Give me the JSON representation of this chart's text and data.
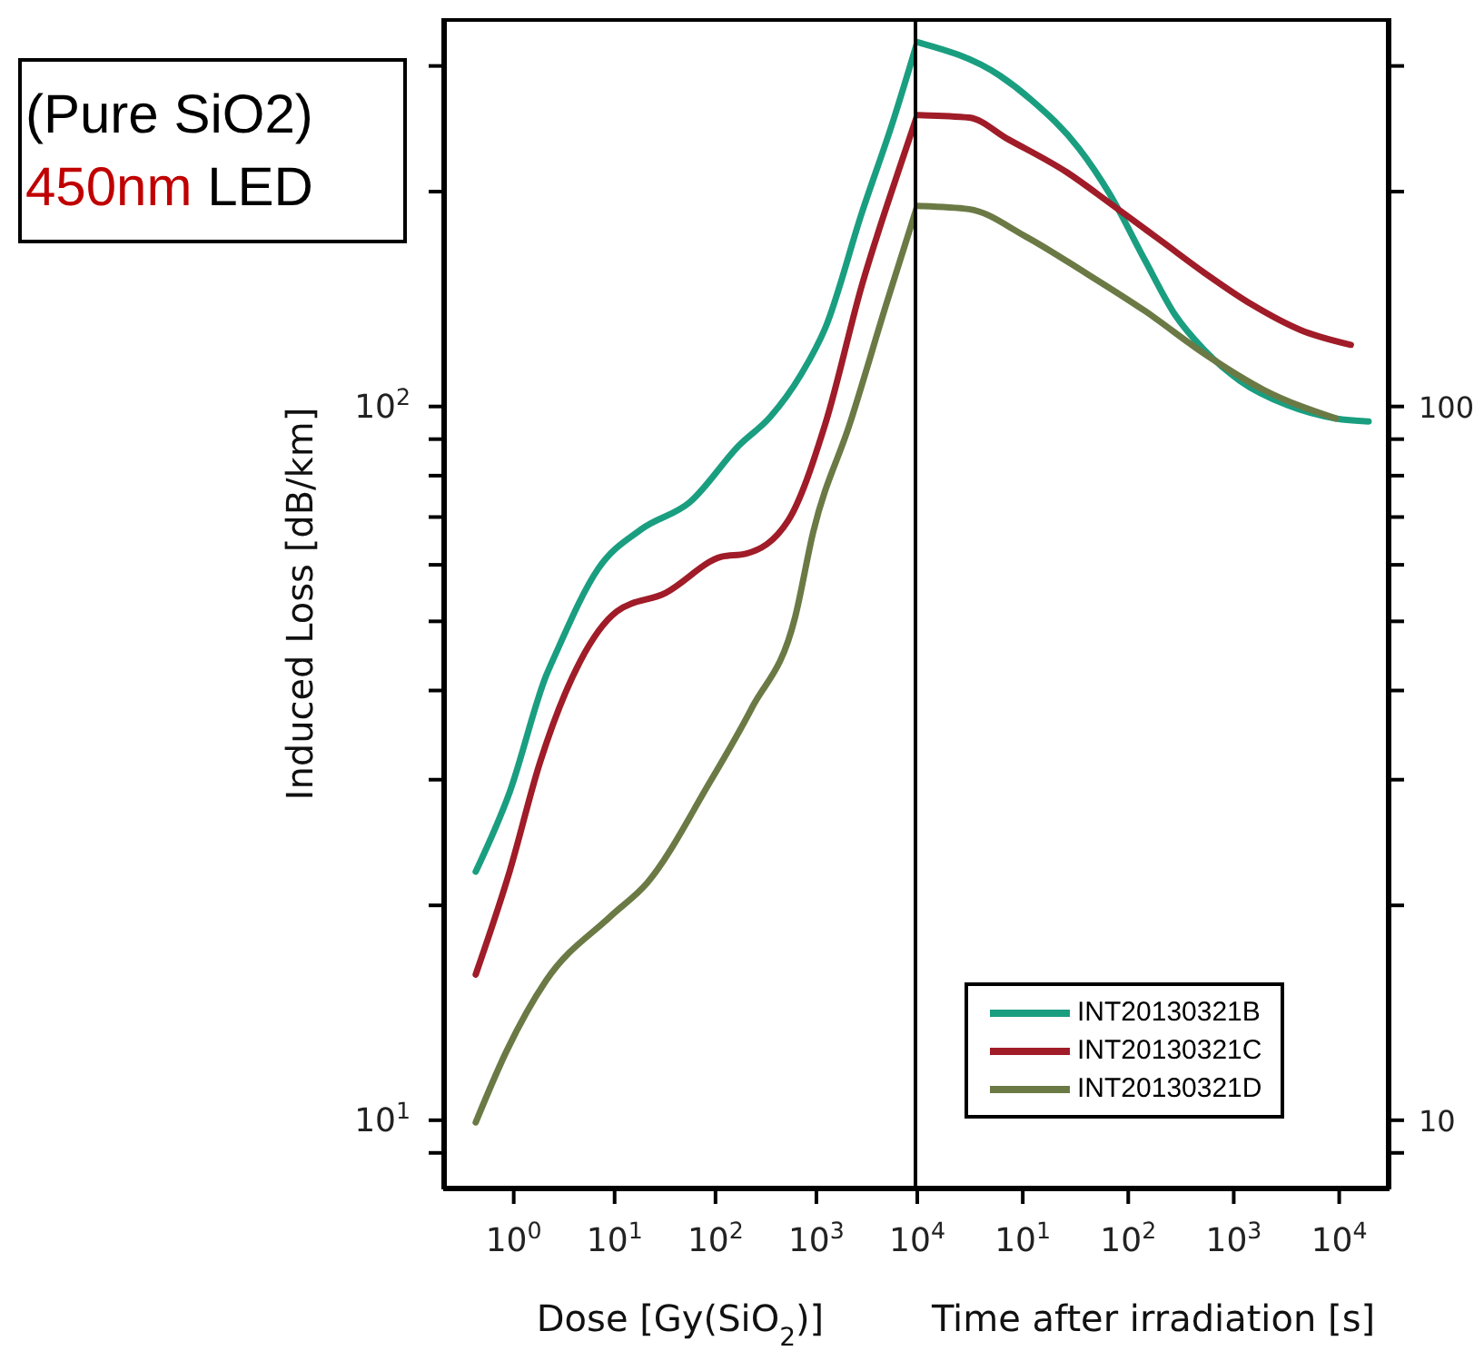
{
  "chart_data": [
    {
      "type": "line",
      "xlabel": "Dose [Gy(SiO$_{2}$)]",
      "ylabel": "Induced Loss [dB/km]",
      "annotations": [
        "(Pure SiO2)",
        "450nm LED"
      ],
      "log": "xy",
      "xlim": [
        0.2,
        10000
      ],
      "xticks": [
        {
          "value": 1,
          "label": "10$^{0}$"
        },
        {
          "value": 10,
          "label": "10$^{1}$"
        },
        {
          "value": 100,
          "label": "10$^{2}$"
        },
        {
          "value": 1000,
          "label": "10$^{3}$"
        },
        {
          "value": 10000,
          "label": "10$^{4}$"
        }
      ],
      "ylim": [
        8,
        350
      ],
      "yticks": [
        {
          "value": 9,
          "label": null
        },
        {
          "value": 10,
          "label": "10$^{1}$"
        },
        {
          "value": 20,
          "label": null
        },
        {
          "value": 30,
          "label": null
        },
        {
          "value": 40,
          "label": null
        },
        {
          "value": 50,
          "label": null
        },
        {
          "value": 60,
          "label": null
        },
        {
          "value": 70,
          "label": null
        },
        {
          "value": 80,
          "label": null
        },
        {
          "value": 90,
          "label": null
        },
        {
          "value": 100,
          "label": "10$^{2}$"
        },
        {
          "value": 200,
          "label": null
        },
        {
          "value": 300,
          "label": null
        }
      ],
      "series": [
        {
          "color": "#1a9e80",
          "x": [
            0.42,
            0.91,
            2.1,
            2.6,
            6.9,
            18.4,
            56,
            174,
            347,
            708,
            1230,
            2830,
            5750,
            10000
          ],
          "values": [
            22.3,
            28.8,
            42,
            45,
            59.3,
            67.3,
            73.5,
            88.4,
            96.6,
            111,
            129,
            187,
            251,
            324
          ]
        },
        {
          "color": "#a01c28",
          "x": [
            0.42,
            0.91,
            1.82,
            4.5,
            10.5,
            32,
            115,
            200,
            525,
            1230,
            2830,
            6600,
            10000
          ],
          "values": [
            16,
            22.3,
            31.7,
            43.8,
            51.6,
            54.8,
            61.6,
            62.2,
            69.2,
            94.7,
            148,
            215,
            256
          ]
        },
        {
          "color": "#6b7a45",
          "x": [
            0.42,
            0.85,
            2.1,
            9.1,
            21,
            86,
            229,
            616,
            930,
            2150,
            5000,
            10000
          ],
          "values": [
            9.93,
            12.5,
            15.7,
            19.3,
            21.5,
            29.6,
            37.8,
            50.7,
            66.7,
            94.7,
            140,
            191
          ]
        }
      ]
    },
    {
      "type": "line",
      "xlabel": "Time after irradiation [s]",
      "log": "xy",
      "legend": "bottom",
      "xlim": [
        1,
        30000
      ],
      "xticks": [
        {
          "value": 10,
          "label": "10$^{1}$"
        },
        {
          "value": 100,
          "label": "10$^{2}$"
        },
        {
          "value": 1000,
          "label": "10$^{3}$"
        },
        {
          "value": 10000,
          "label": "10$^{4}$"
        }
      ],
      "ylim": [
        8,
        350
      ],
      "yticks": [
        {
          "value": 9,
          "label": null
        },
        10,
        {
          "value": 20,
          "label": null
        },
        {
          "value": 30,
          "label": null
        },
        {
          "value": 40,
          "label": null
        },
        {
          "value": 50,
          "label": null
        },
        {
          "value": 60,
          "label": null
        },
        {
          "value": 70,
          "label": null
        },
        {
          "value": 80,
          "label": null
        },
        {
          "value": 90,
          "label": null
        },
        100,
        {
          "value": 200,
          "label": null
        },
        {
          "value": 300,
          "label": null
        }
      ],
      "series": [
        {
          "name": "INT20130321B",
          "color": "#1a9e80",
          "x": [
            1,
            6,
            12,
            34,
            66,
            145,
            277,
            525,
            1150,
            3240,
            9300,
            19000
          ],
          "values": [
            324,
            291,
            269,
            230,
            199,
            160,
            134.5,
            120,
            108.6,
            100.4,
            96.2,
            95.3
          ]
        },
        {
          "name": "INT20130321C",
          "color": "#a01c28",
          "x": [
            1,
            3.1,
            7.2,
            26,
            66,
            212,
            525,
            1480,
            4300,
            12900
          ],
          "values": [
            256,
            254,
            237,
            213,
            193,
            170,
            154,
            139,
            128,
            122
          ]
        },
        {
          "name": "INT20130321D",
          "color": "#6b7a45",
          "x": [
            1,
            3.1,
            10.7,
            39,
            145,
            525,
            1950,
            9300
          ],
          "values": [
            191,
            189,
            173,
            154,
            136,
            118.6,
            105.4,
            96.2
          ]
        }
      ]
    }
  ]
}
